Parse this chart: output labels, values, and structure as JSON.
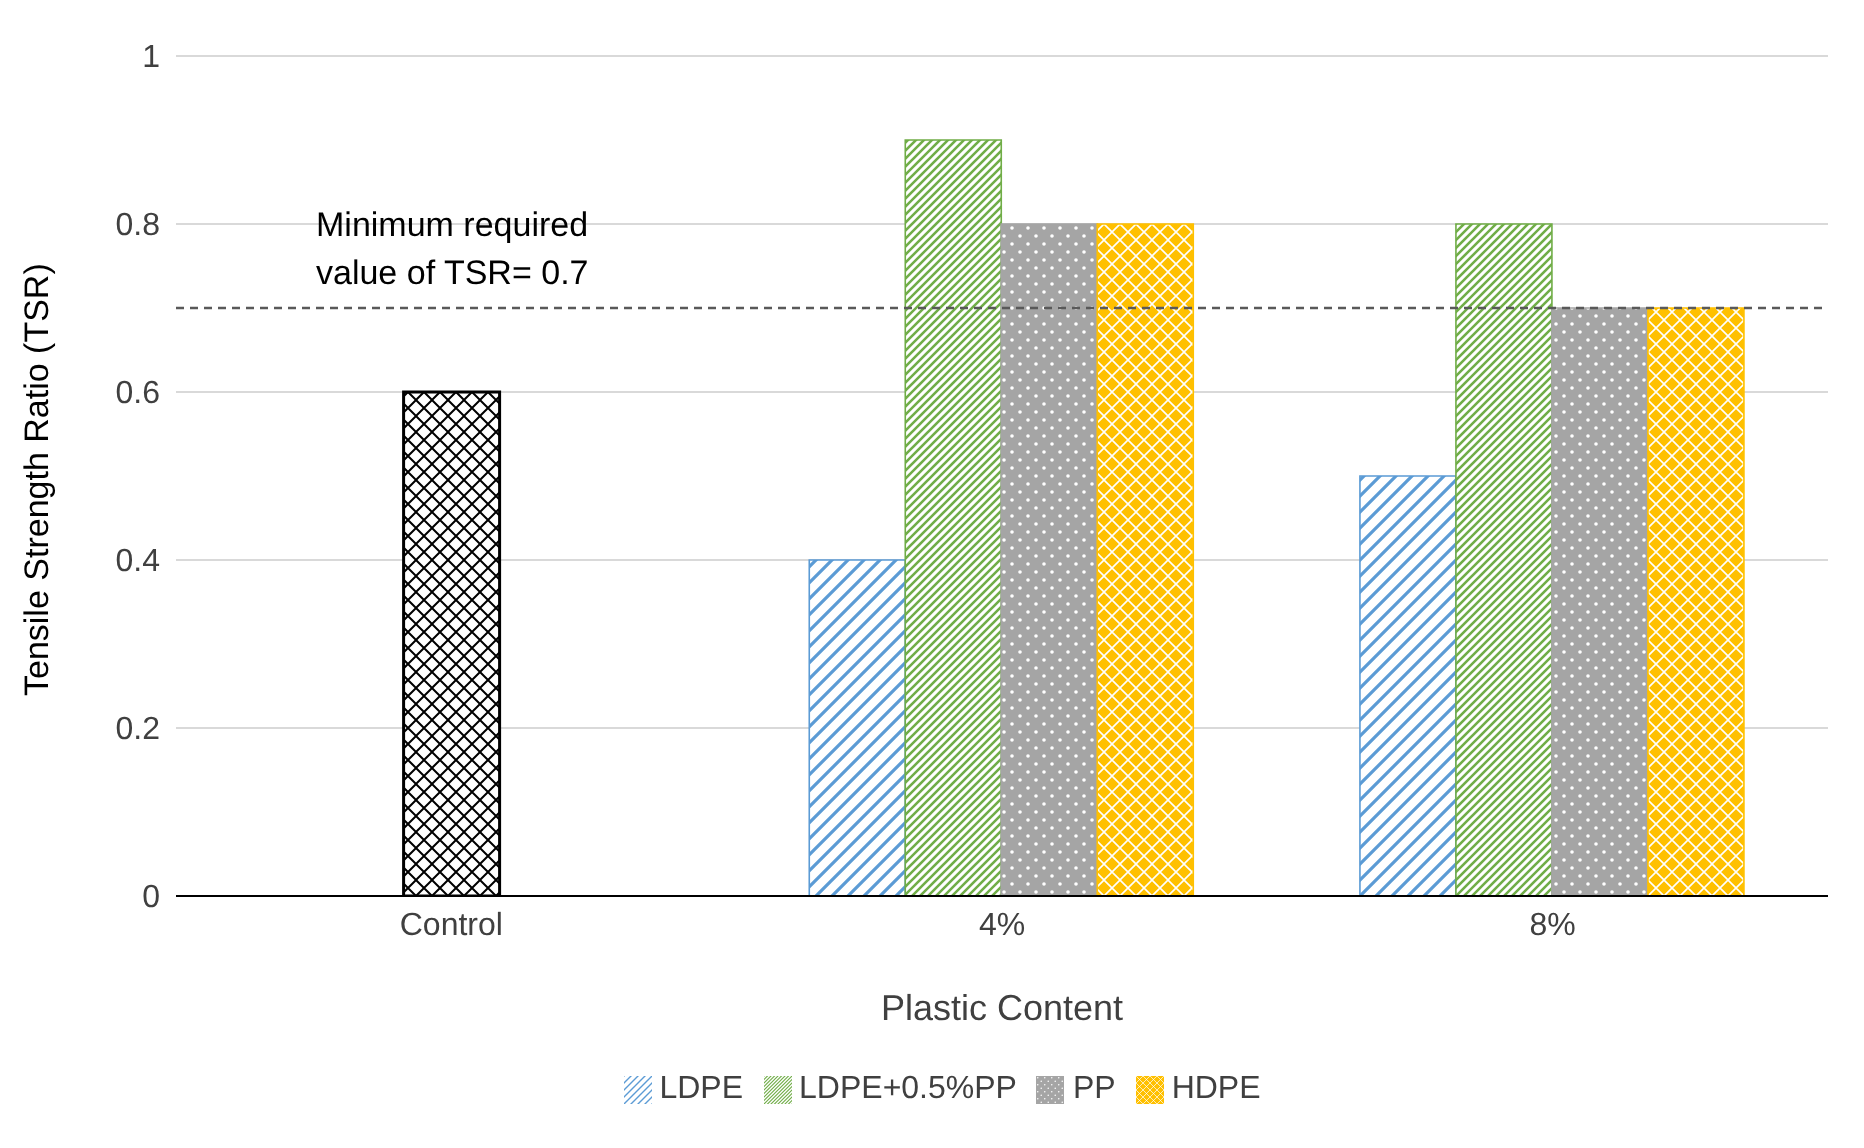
{
  "chart_data": {
    "type": "bar",
    "xlabel": "Plastic Content",
    "ylabel": "Tensile Strength Ratio (TSR)",
    "categories": [
      "Control",
      "4%",
      "8%"
    ],
    "series": [
      {
        "color": "#000000",
        "values": [
          0.6,
          null,
          null
        ]
      },
      {
        "name": "LDPE",
        "color": "#5b9bd5",
        "values": [
          null,
          0.4,
          0.5
        ]
      },
      {
        "name": "LDPE+0.5%PP",
        "color": "#70ad47",
        "values": [
          null,
          0.9,
          0.8
        ]
      },
      {
        "name": "PP",
        "color": "#a5a5a5",
        "values": [
          null,
          0.8,
          0.7
        ]
      },
      {
        "name": "HDPE",
        "color": "#ffc000",
        "values": [
          null,
          0.8,
          0.7
        ]
      }
    ],
    "ylim": [
      0,
      1
    ],
    "yticks": [
      0,
      0.2,
      0.4,
      0.6,
      0.8,
      1
    ],
    "grid": "y",
    "legend": "bottom",
    "ref_lines": [
      {
        "axis": "y",
        "value": 0.7,
        "label": "Minimum required\nvalue of TSR= 0.7",
        "color": "#595959",
        "line_style": "dashed"
      }
    ]
  }
}
